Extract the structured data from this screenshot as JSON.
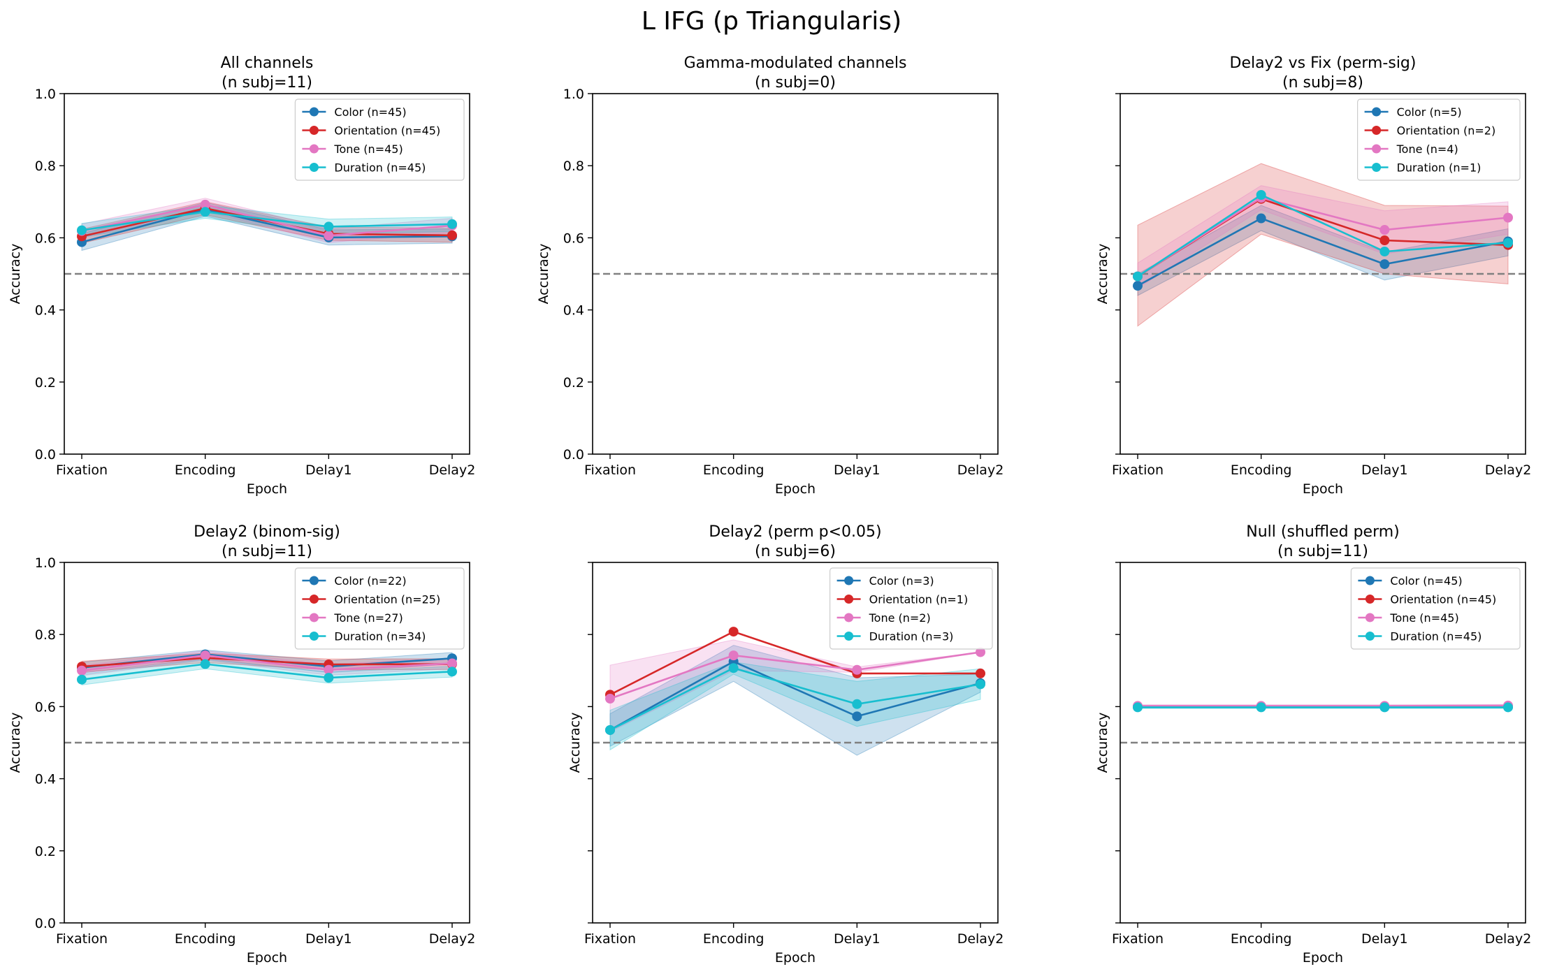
{
  "figure": {
    "suptitle": "L IFG (p Triangularis)"
  },
  "colors": {
    "Color": "#1f77b4",
    "Orientation": "#d62728",
    "Tone": "#e377c2",
    "Duration": "#17becf",
    "chance_line": "#808080"
  },
  "chart_data": [
    {
      "type": "line",
      "title": "All channels",
      "subtitle": "(n subj=11)",
      "xlabel": "Epoch",
      "ylabel": "Accuracy",
      "categories": [
        "Fixation",
        "Encoding",
        "Delay1",
        "Delay2"
      ],
      "ylim": [
        0,
        1
      ],
      "yticks": [
        "0.0",
        "0.2",
        "0.4",
        "0.6",
        "0.8",
        "1.0"
      ],
      "show_ytick_labels": true,
      "chance_level": 0.5,
      "legend_position": "top-right",
      "series": [
        {
          "name": "Color (n=45)",
          "key": "Color",
          "values": [
            0.588,
            0.679,
            0.601,
            0.604
          ],
          "ci_low": [
            0.565,
            0.66,
            0.58,
            0.585
          ],
          "ci_high": [
            0.612,
            0.698,
            0.622,
            0.624
          ]
        },
        {
          "name": "Orientation (n=45)",
          "key": "Orientation",
          "values": [
            0.604,
            0.682,
            0.611,
            0.607
          ],
          "ci_low": [
            0.585,
            0.664,
            0.593,
            0.588
          ],
          "ci_high": [
            0.624,
            0.7,
            0.63,
            0.627
          ]
        },
        {
          "name": "Tone (n=45)",
          "key": "Tone",
          "values": [
            0.619,
            0.692,
            0.606,
            0.634
          ],
          "ci_low": [
            0.6,
            0.674,
            0.587,
            0.614
          ],
          "ci_high": [
            0.638,
            0.71,
            0.625,
            0.654
          ]
        },
        {
          "name": "Duration (n=45)",
          "key": "Duration",
          "values": [
            0.621,
            0.672,
            0.631,
            0.638
          ],
          "ci_low": [
            0.602,
            0.654,
            0.611,
            0.617
          ],
          "ci_high": [
            0.64,
            0.69,
            0.652,
            0.658
          ]
        }
      ]
    },
    {
      "type": "line",
      "title": "Gamma-modulated channels",
      "subtitle": "(n subj=0)",
      "xlabel": "Epoch",
      "ylabel": "Accuracy",
      "categories": [
        "Fixation",
        "Encoding",
        "Delay1",
        "Delay2"
      ],
      "ylim": [
        0,
        1
      ],
      "yticks": [
        "0.0",
        "0.2",
        "0.4",
        "0.6",
        "0.8",
        "1.0"
      ],
      "show_ytick_labels": true,
      "chance_level": 0.5,
      "legend_position": "",
      "series": []
    },
    {
      "type": "line",
      "title": "Delay2 vs Fix (perm-sig)",
      "subtitle": "(n subj=8)",
      "xlabel": "Epoch",
      "ylabel": "Accuracy",
      "categories": [
        "Fixation",
        "Encoding",
        "Delay1",
        "Delay2"
      ],
      "ylim": [
        0,
        1
      ],
      "yticks": [
        "0.0",
        "0.2",
        "0.4",
        "0.6",
        "0.8",
        "1.0"
      ],
      "show_ytick_labels": false,
      "chance_level": 0.5,
      "legend_position": "top-right",
      "series": [
        {
          "name": "Color (n=5)",
          "key": "Color",
          "values": [
            0.467,
            0.654,
            0.527,
            0.59
          ],
          "ci_low": [
            0.44,
            0.62,
            0.483,
            0.55
          ],
          "ci_high": [
            0.5,
            0.69,
            0.56,
            0.625
          ]
        },
        {
          "name": "Orientation (n=2)",
          "key": "Orientation",
          "values": [
            0.493,
            0.708,
            0.593,
            0.58
          ],
          "ci_low": [
            0.355,
            0.61,
            0.5,
            0.472
          ],
          "ci_high": [
            0.635,
            0.806,
            0.69,
            0.688
          ]
        },
        {
          "name": "Tone (n=4)",
          "key": "Tone",
          "values": [
            0.493,
            0.711,
            0.622,
            0.656
          ],
          "ci_low": [
            0.46,
            0.678,
            0.555,
            0.61
          ],
          "ci_high": [
            0.53,
            0.745,
            0.675,
            0.7
          ]
        },
        {
          "name": "Duration (n=1)",
          "key": "Duration",
          "values": [
            0.493,
            0.719,
            0.562,
            0.586
          ],
          "ci_low": [
            0.493,
            0.719,
            0.562,
            0.586
          ],
          "ci_high": [
            0.493,
            0.719,
            0.562,
            0.586
          ]
        }
      ]
    },
    {
      "type": "line",
      "title": "Delay2 (binom-sig)",
      "subtitle": "(n subj=11)",
      "xlabel": "Epoch",
      "ylabel": "Accuracy",
      "categories": [
        "Fixation",
        "Encoding",
        "Delay1",
        "Delay2"
      ],
      "ylim": [
        0,
        1
      ],
      "yticks": [
        "0.0",
        "0.2",
        "0.4",
        "0.6",
        "0.8",
        "1.0"
      ],
      "show_ytick_labels": true,
      "chance_level": 0.5,
      "legend_position": "top-right",
      "series": [
        {
          "name": "Color (n=22)",
          "key": "Color",
          "values": [
            0.708,
            0.745,
            0.711,
            0.734
          ],
          "ci_low": [
            0.693,
            0.733,
            0.695,
            0.718
          ],
          "ci_high": [
            0.723,
            0.757,
            0.727,
            0.75
          ]
        },
        {
          "name": "Orientation (n=25)",
          "key": "Orientation",
          "values": [
            0.711,
            0.735,
            0.717,
            0.718
          ],
          "ci_low": [
            0.696,
            0.722,
            0.702,
            0.703
          ],
          "ci_high": [
            0.726,
            0.748,
            0.732,
            0.733
          ]
        },
        {
          "name": "Tone (n=27)",
          "key": "Tone",
          "values": [
            0.7,
            0.742,
            0.702,
            0.72
          ],
          "ci_low": [
            0.686,
            0.729,
            0.687,
            0.705
          ],
          "ci_high": [
            0.714,
            0.755,
            0.717,
            0.735
          ]
        },
        {
          "name": "Duration (n=34)",
          "key": "Duration",
          "values": [
            0.675,
            0.718,
            0.68,
            0.697
          ],
          "ci_low": [
            0.66,
            0.705,
            0.665,
            0.682
          ],
          "ci_high": [
            0.69,
            0.731,
            0.695,
            0.712
          ]
        }
      ]
    },
    {
      "type": "line",
      "title": "Delay2 (perm p<0.05)",
      "subtitle": "(n subj=6)",
      "xlabel": "Epoch",
      "ylabel": "Accuracy",
      "categories": [
        "Fixation",
        "Encoding",
        "Delay1",
        "Delay2"
      ],
      "ylim": [
        0,
        1
      ],
      "yticks": [
        "0.0",
        "0.2",
        "0.4",
        "0.6",
        "0.8",
        "1.0"
      ],
      "show_ytick_labels": false,
      "chance_level": 0.5,
      "legend_position": "top-right",
      "series": [
        {
          "name": "Color (n=3)",
          "key": "Color",
          "values": [
            0.535,
            0.725,
            0.573,
            0.665
          ],
          "ci_low": [
            0.49,
            0.67,
            0.465,
            0.64
          ],
          "ci_high": [
            0.58,
            0.77,
            0.68,
            0.69
          ]
        },
        {
          "name": "Orientation (n=1)",
          "key": "Orientation",
          "values": [
            0.633,
            0.808,
            0.692,
            0.692
          ],
          "ci_low": [
            0.633,
            0.808,
            0.692,
            0.692
          ],
          "ci_high": [
            0.633,
            0.808,
            0.692,
            0.692
          ]
        },
        {
          "name": "Tone (n=2)",
          "key": "Tone",
          "values": [
            0.622,
            0.742,
            0.702,
            0.751
          ],
          "ci_low": [
            0.53,
            0.7,
            0.695,
            0.751
          ],
          "ci_high": [
            0.715,
            0.785,
            0.71,
            0.751
          ]
        },
        {
          "name": "Duration (n=3)",
          "key": "Duration",
          "values": [
            0.535,
            0.707,
            0.607,
            0.662
          ],
          "ci_low": [
            0.48,
            0.69,
            0.545,
            0.62
          ],
          "ci_high": [
            0.59,
            0.724,
            0.67,
            0.705
          ]
        }
      ]
    },
    {
      "type": "line",
      "title": "Null (shuffled perm)",
      "subtitle": "(n subj=11)",
      "xlabel": "Epoch",
      "ylabel": "Accuracy",
      "categories": [
        "Fixation",
        "Encoding",
        "Delay1",
        "Delay2"
      ],
      "ylim": [
        0,
        1
      ],
      "yticks": [
        "0.0",
        "0.2",
        "0.4",
        "0.6",
        "0.8",
        "1.0"
      ],
      "show_ytick_labels": false,
      "chance_level": 0.5,
      "legend_position": "top-right",
      "series": [
        {
          "name": "Color (n=45)",
          "key": "Color",
          "values": [
            0.599,
            0.599,
            0.599,
            0.599
          ],
          "ci_low": [
            0.596,
            0.596,
            0.596,
            0.596
          ],
          "ci_high": [
            0.602,
            0.602,
            0.602,
            0.602
          ]
        },
        {
          "name": "Orientation (n=45)",
          "key": "Orientation",
          "values": [
            0.6,
            0.6,
            0.6,
            0.6
          ],
          "ci_low": [
            0.597,
            0.597,
            0.597,
            0.597
          ],
          "ci_high": [
            0.603,
            0.603,
            0.603,
            0.603
          ]
        },
        {
          "name": "Tone (n=45)",
          "key": "Tone",
          "values": [
            0.602,
            0.602,
            0.602,
            0.603
          ],
          "ci_low": [
            0.599,
            0.599,
            0.599,
            0.6
          ],
          "ci_high": [
            0.605,
            0.605,
            0.605,
            0.606
          ]
        },
        {
          "name": "Duration (n=45)",
          "key": "Duration",
          "values": [
            0.598,
            0.598,
            0.598,
            0.598
          ],
          "ci_low": [
            0.595,
            0.595,
            0.595,
            0.595
          ],
          "ci_high": [
            0.601,
            0.601,
            0.601,
            0.601
          ]
        }
      ]
    }
  ]
}
